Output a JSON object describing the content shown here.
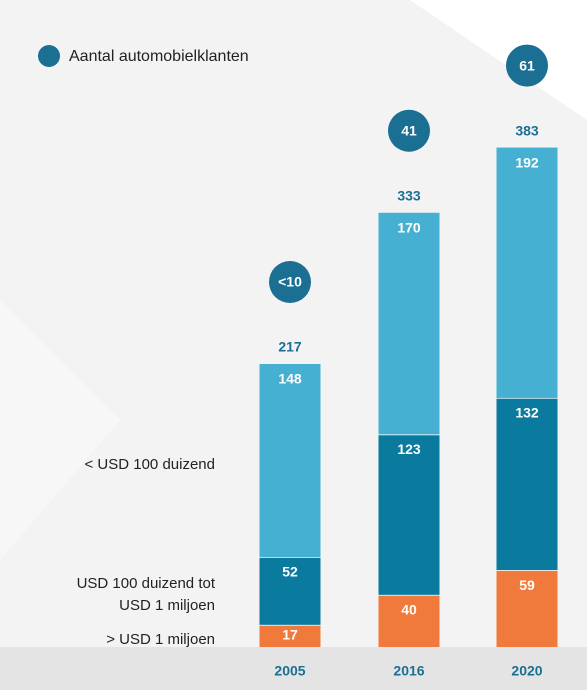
{
  "chart_data": {
    "type": "stacked_bar",
    "categories": [
      "2005",
      "2016",
      "2020"
    ],
    "series": [
      {
        "name": "> USD 1 miljoen",
        "color": "#f07a3c",
        "values": [
          17,
          40,
          59
        ]
      },
      {
        "name": "USD 100 duizend tot USD 1 miljoen",
        "color": "#0a7a9e",
        "values": [
          52,
          123,
          132
        ]
      },
      {
        "name": "< USD 100 duizend",
        "color": "#46b0d2",
        "values": [
          148,
          170,
          192
        ]
      }
    ],
    "totals": [
      217,
      333,
      383
    ],
    "customers": {
      "name": "Aantal automobielklanten",
      "color": "#1a6f93",
      "labels": [
        "<10",
        "41",
        "61"
      ]
    },
    "ylim": [
      0,
      400
    ]
  }
}
